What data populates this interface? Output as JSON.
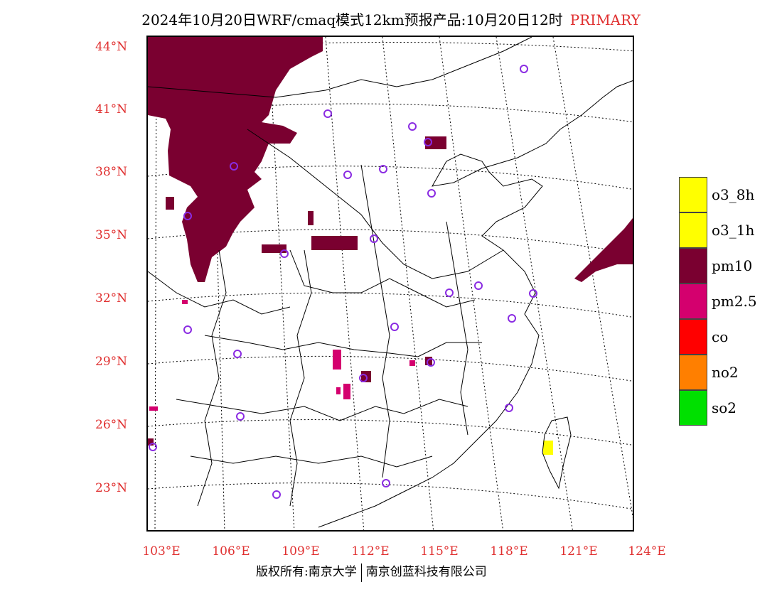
{
  "title": {
    "text": "2024年10月20日WRF/cmaq模式12km预报产品:10月20日12时",
    "tag": "PRIMARY"
  },
  "axes": {
    "lat_labels": [
      "44°N",
      "41°N",
      "38°N",
      "35°N",
      "32°N",
      "29°N",
      "26°N",
      "23°N"
    ],
    "lon_labels": [
      "103°E",
      "106°E",
      "109°E",
      "112°E",
      "115°E",
      "118°E",
      "121°E",
      "124°E"
    ]
  },
  "legend": {
    "items": [
      {
        "label": "o3_8h",
        "color": "#ffff00"
      },
      {
        "label": "o3_1h",
        "color": "#ffff00"
      },
      {
        "label": "pm10",
        "color": "#7a0030"
      },
      {
        "label": "pm2.5",
        "color": "#d4006e"
      },
      {
        "label": "co",
        "color": "#ff0000"
      },
      {
        "label": "no2",
        "color": "#ff7f00"
      },
      {
        "label": "so2",
        "color": "#00e000"
      }
    ]
  },
  "footer": {
    "left": "版权所有:南京大学",
    "right": "南京创蓝科技有限公司"
  },
  "colors": {
    "pm10": "#7a0030",
    "pm25": "#d4006e",
    "o3": "#ffff00",
    "station": "#8a2be2",
    "axis_label": "#e03030"
  }
}
